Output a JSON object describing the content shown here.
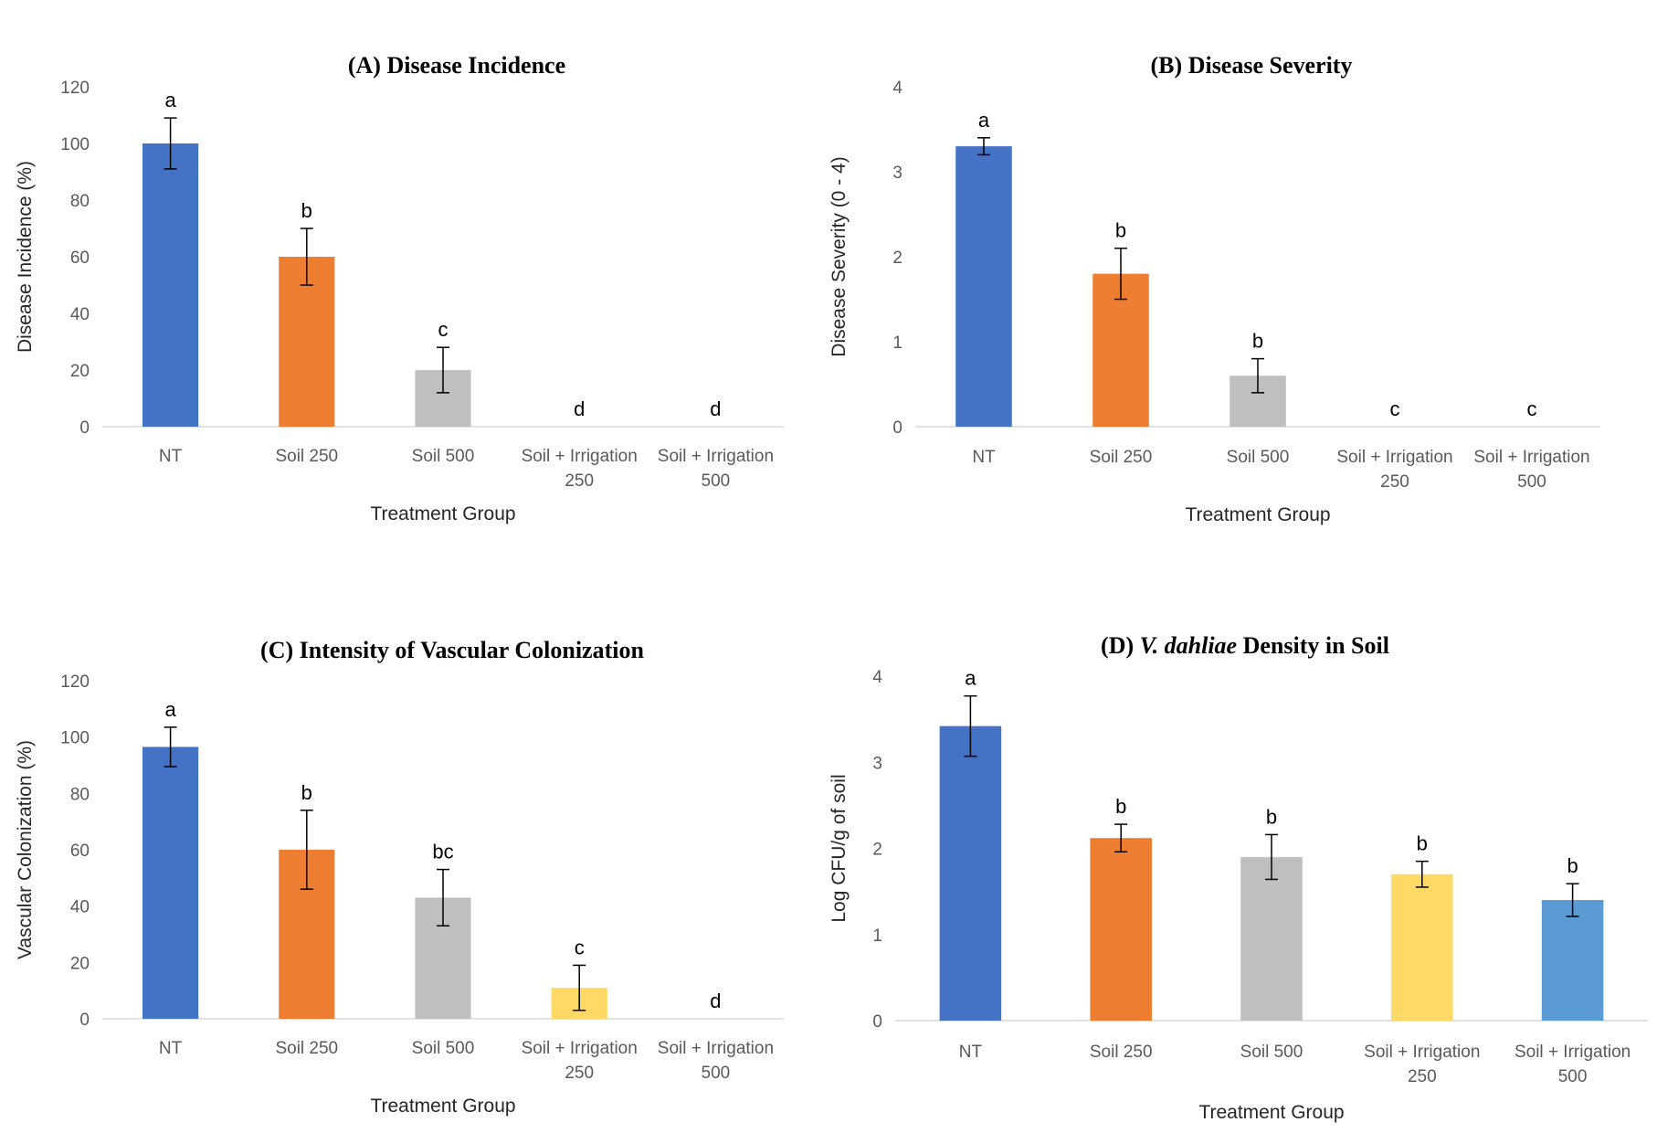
{
  "chart_data": [
    {
      "type": "bar",
      "panel": "A",
      "title_prefix": "(A)",
      "title_parts": [
        "Disease Incidence"
      ],
      "title_italic": [
        false
      ],
      "xlabel": "Treatment Group",
      "ylabel": "Disease Incidence (%)",
      "ylim": [
        0,
        120
      ],
      "yticks": [
        "0",
        "20",
        "40",
        "60",
        "80",
        "100",
        "120"
      ],
      "categories": [
        [
          "NT"
        ],
        [
          "Soil 250"
        ],
        [
          "Soil 500"
        ],
        [
          "Soil + Irrigation",
          "250"
        ],
        [
          "Soil + Irrigation",
          "500"
        ]
      ],
      "values": [
        100,
        60,
        20,
        0,
        0
      ],
      "errors": [
        9,
        10,
        8,
        0,
        0
      ],
      "letters": [
        "a",
        "b",
        "c",
        "d",
        "d"
      ],
      "colors": [
        "#4472C4",
        "#ED7D31",
        "#BFBFBF",
        "#FFD966",
        "#5B9BD5"
      ]
    },
    {
      "type": "bar",
      "panel": "B",
      "title_prefix": "(B)",
      "title_parts": [
        "Disease Severity"
      ],
      "title_italic": [
        false
      ],
      "xlabel": "Treatment Group",
      "ylabel": "Disease Severity (0 - 4)",
      "ylim": [
        0,
        4
      ],
      "yticks": [
        "0",
        "1",
        "2",
        "3",
        "4"
      ],
      "categories": [
        [
          "NT"
        ],
        [
          "Soil 250"
        ],
        [
          "Soil 500"
        ],
        [
          "Soil + Irrigation",
          "250"
        ],
        [
          "Soil + Irrigation",
          "500"
        ]
      ],
      "values": [
        3.3,
        1.8,
        0.6,
        0,
        0
      ],
      "errors": [
        0.1,
        0.3,
        0.2,
        0,
        0
      ],
      "letters": [
        "a",
        "b",
        "b",
        "c",
        "c"
      ],
      "colors": [
        "#4472C4",
        "#ED7D31",
        "#BFBFBF",
        "#FFD966",
        "#5B9BD5"
      ]
    },
    {
      "type": "bar",
      "panel": "C",
      "title_prefix": "(C)",
      "title_parts": [
        "Intensity of Vascular Colonization"
      ],
      "title_italic": [
        false
      ],
      "xlabel": "Treatment Group",
      "ylabel": "Vascular Colonization (%)",
      "ylim": [
        0,
        120
      ],
      "yticks": [
        "0",
        "20",
        "40",
        "60",
        "80",
        "100",
        "120"
      ],
      "categories": [
        [
          "NT"
        ],
        [
          "Soil 250"
        ],
        [
          "Soil 500"
        ],
        [
          "Soil + Irrigation",
          "250"
        ],
        [
          "Soil + Irrigation",
          "500"
        ]
      ],
      "values": [
        96.5,
        60,
        43,
        11,
        0
      ],
      "errors": [
        7,
        14,
        10,
        8,
        0
      ],
      "letters": [
        "a",
        "b",
        "bc",
        "c",
        "d"
      ],
      "colors": [
        "#4472C4",
        "#ED7D31",
        "#BFBFBF",
        "#FFD966",
        "#5B9BD5"
      ]
    },
    {
      "type": "bar",
      "panel": "D",
      "title_prefix": "(D)",
      "title_parts": [
        "V. dahliae",
        " Density in Soil"
      ],
      "title_italic": [
        true,
        false
      ],
      "xlabel": "Treatment Group",
      "ylabel": "Log CFU/g of soil",
      "ylim": [
        0,
        4
      ],
      "yticks": [
        "0",
        "1",
        "2",
        "3",
        "4"
      ],
      "categories": [
        [
          "NT"
        ],
        [
          "Soil 250"
        ],
        [
          "Soil 500"
        ],
        [
          "Soil + Irrigation",
          "250"
        ],
        [
          "Soil + Irrigation",
          "500"
        ]
      ],
      "values": [
        3.42,
        2.12,
        1.9,
        1.7,
        1.4
      ],
      "errors": [
        0.35,
        0.16,
        0.26,
        0.15,
        0.19
      ],
      "letters": [
        "a",
        "b",
        "b",
        "b",
        "b"
      ],
      "colors": [
        "#4472C4",
        "#ED7D31",
        "#BFBFBF",
        "#FFD966",
        "#5B9BD5"
      ]
    }
  ]
}
